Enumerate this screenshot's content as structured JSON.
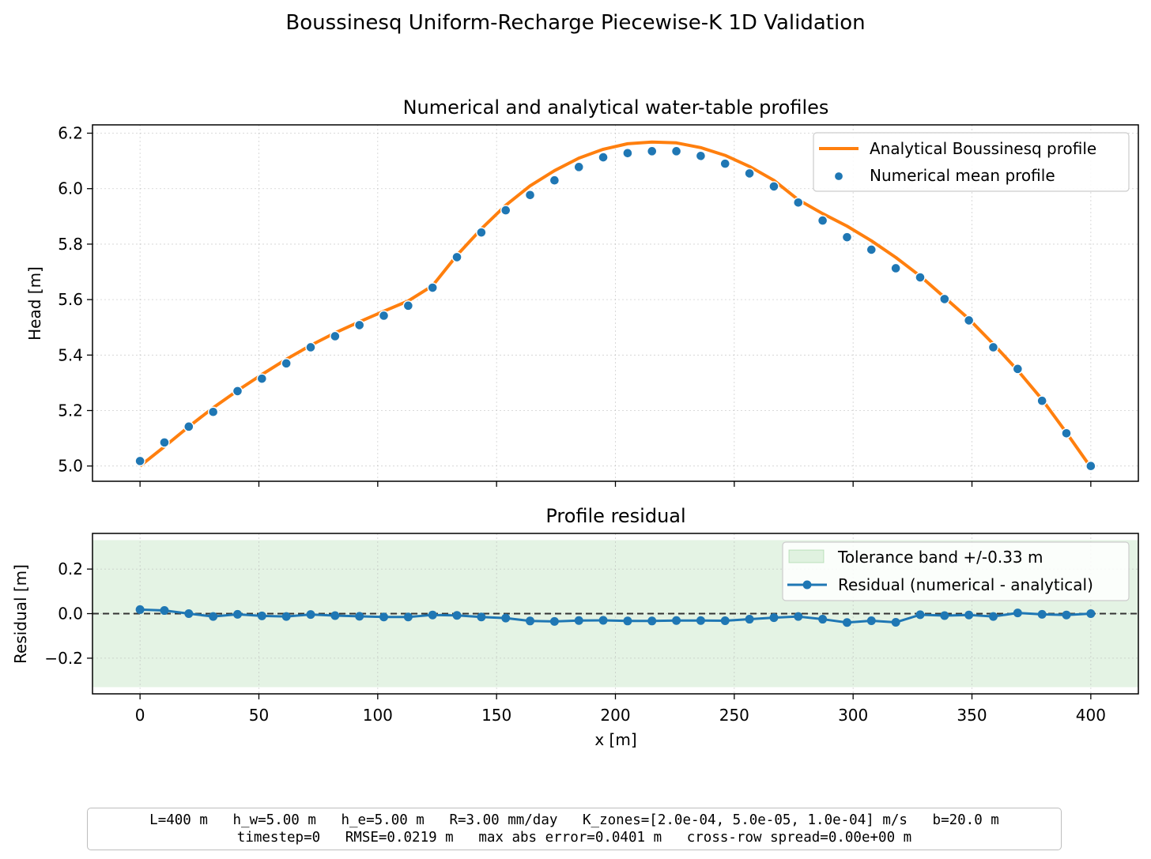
{
  "figure": {
    "title": "Boussinesq Uniform-Recharge Piecewise-K 1D Validation"
  },
  "chart_data": [
    {
      "type": "line",
      "title": "Numerical and analytical water-table profiles",
      "xlabel": "",
      "ylabel": "Head [m]",
      "xlim": [
        -20,
        420
      ],
      "ylim": [
        4.945,
        6.23
      ],
      "yticks": [
        5.0,
        5.2,
        5.4,
        5.6,
        5.8,
        6.0,
        6.2
      ],
      "ytick_labels": [
        "5.0",
        "5.2",
        "5.4",
        "5.6",
        "5.8",
        "6.0",
        "6.2"
      ],
      "grid": true,
      "legend_position": "top-right",
      "series": [
        {
          "name": "Analytical Boussinesq profile",
          "kind": "line",
          "color": "#ff7f0e",
          "x": [
            0,
            10.26,
            20.51,
            30.77,
            41.03,
            51.28,
            61.54,
            71.79,
            82.05,
            92.31,
            102.56,
            112.82,
            123.08,
            133.33,
            143.59,
            153.85,
            164.1,
            174.36,
            184.62,
            194.87,
            205.13,
            215.38,
            225.64,
            235.9,
            246.15,
            256.41,
            266.67,
            276.92,
            287.18,
            297.44,
            307.69,
            317.95,
            328.21,
            338.46,
            348.72,
            358.97,
            369.23,
            379.49,
            389.74,
            400
          ],
          "y": [
            5.0,
            5.07,
            5.142,
            5.21,
            5.272,
            5.33,
            5.385,
            5.435,
            5.48,
            5.52,
            5.558,
            5.595,
            5.65,
            5.76,
            5.855,
            5.94,
            6.01,
            6.065,
            6.11,
            6.142,
            6.162,
            6.168,
            6.165,
            6.148,
            6.12,
            6.08,
            6.03,
            5.96,
            5.91,
            5.865,
            5.812,
            5.752,
            5.685,
            5.608,
            5.53,
            5.44,
            5.345,
            5.24,
            5.12,
            4.995
          ]
        },
        {
          "name": "Numerical mean profile",
          "kind": "scatter",
          "color": "#1f77b4",
          "x": [
            0,
            10.26,
            20.51,
            30.77,
            41.03,
            51.28,
            61.54,
            71.79,
            82.05,
            92.31,
            102.56,
            112.82,
            123.08,
            133.33,
            143.59,
            153.85,
            164.1,
            174.36,
            184.62,
            194.87,
            205.13,
            215.38,
            225.64,
            235.9,
            246.15,
            256.41,
            266.67,
            276.92,
            287.18,
            297.44,
            307.69,
            317.95,
            328.21,
            338.46,
            348.72,
            358.97,
            369.23,
            379.49,
            389.74,
            400
          ],
          "y": [
            5.018,
            5.085,
            5.142,
            5.195,
            5.27,
            5.315,
            5.37,
            5.428,
            5.468,
            5.508,
            5.542,
            5.578,
            5.643,
            5.753,
            5.842,
            5.922,
            5.977,
            6.03,
            6.078,
            6.113,
            6.128,
            6.135,
            6.135,
            6.118,
            6.09,
            6.055,
            6.008,
            5.95,
            5.885,
            5.825,
            5.78,
            5.713,
            5.68,
            5.602,
            5.525,
            5.428,
            5.35,
            5.235,
            5.118,
            5.0
          ]
        }
      ]
    },
    {
      "type": "line",
      "title": "Profile residual",
      "xlabel": "x [m]",
      "ylabel": "Residual [m]",
      "xlim": [
        -20,
        420
      ],
      "ylim": [
        -0.36,
        0.36
      ],
      "xticks": [
        0,
        50,
        100,
        150,
        200,
        250,
        300,
        350,
        400
      ],
      "xtick_labels": [
        "0",
        "50",
        "100",
        "150",
        "200",
        "250",
        "300",
        "350",
        "400"
      ],
      "yticks": [
        -0.2,
        0.0,
        0.2
      ],
      "ytick_labels": [
        "−0.2",
        "0.0",
        "0.2"
      ],
      "grid": true,
      "legend_position": "top-right",
      "band": {
        "name": "Tolerance band +/-0.33 m",
        "low": -0.33,
        "high": 0.33,
        "color": "#2ca02c"
      },
      "reference_line": 0.0,
      "series": [
        {
          "name": "Residual (numerical - analytical)",
          "kind": "line-markers",
          "color": "#1f77b4",
          "x": [
            0,
            10.26,
            20.51,
            30.77,
            41.03,
            51.28,
            61.54,
            71.79,
            82.05,
            92.31,
            102.56,
            112.82,
            123.08,
            133.33,
            143.59,
            153.85,
            164.1,
            174.36,
            184.62,
            194.87,
            205.13,
            215.38,
            225.64,
            235.9,
            246.15,
            256.41,
            266.67,
            276.92,
            287.18,
            297.44,
            307.69,
            317.95,
            328.21,
            338.46,
            348.72,
            358.97,
            369.23,
            379.49,
            389.74,
            400
          ],
          "y": [
            0.018,
            0.014,
            0.0,
            -0.013,
            -0.003,
            -0.01,
            -0.013,
            -0.004,
            -0.009,
            -0.012,
            -0.015,
            -0.015,
            -0.006,
            -0.008,
            -0.015,
            -0.02,
            -0.033,
            -0.035,
            -0.031,
            -0.03,
            -0.033,
            -0.033,
            -0.031,
            -0.031,
            -0.032,
            -0.025,
            -0.018,
            -0.013,
            -0.025,
            -0.04,
            -0.032,
            -0.039,
            -0.005,
            -0.009,
            -0.006,
            -0.013,
            0.003,
            -0.003,
            -0.006,
            0.0
          ]
        }
      ]
    }
  ],
  "info": {
    "line1": "L=400 m   h_w=5.00 m   h_e=5.00 m   R=3.00 mm/day   K_zones=[2.0e-04, 5.0e-05, 1.0e-04] m/s   b=20.0 m",
    "line2": "timestep=0   RMSE=0.0219 m   max abs error=0.0401 m   cross-row spread=0.00e+00 m"
  }
}
